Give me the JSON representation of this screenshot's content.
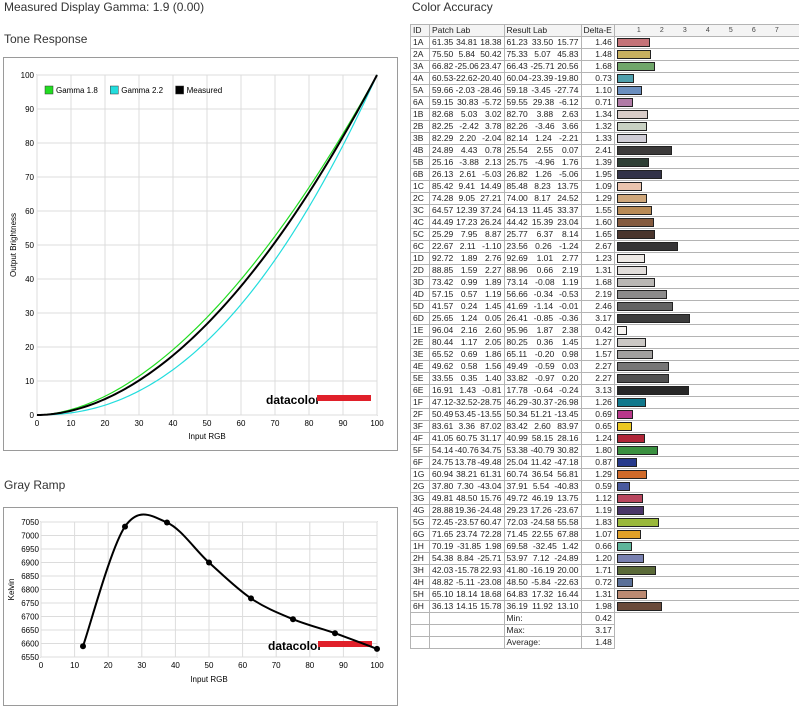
{
  "header": {
    "measured_gamma": "Measured Display Gamma: 1.9 (0.00)",
    "color_accuracy_title": "Color Accuracy"
  },
  "chart_data": [
    {
      "type": "line",
      "title": "Tone Response",
      "xlabel": "Input RGB",
      "ylabel": "Output Brightness",
      "xlim": [
        0,
        100
      ],
      "ylim": [
        0,
        100
      ],
      "xticks": [
        "0",
        "10",
        "20",
        "30",
        "40",
        "50",
        "60",
        "70",
        "80",
        "90",
        "100"
      ],
      "yticks": [
        "0",
        "10",
        "20",
        "30",
        "40",
        "50",
        "60",
        "70",
        "80",
        "90",
        "100"
      ],
      "grid": true,
      "legend": "top-left",
      "logo": "datacolor",
      "series": [
        {
          "name": "Gamma 1.8",
          "color": "#22dd22",
          "gamma": 1.8
        },
        {
          "name": "Gamma 2.2",
          "color": "#22dddd",
          "gamma": 2.2
        },
        {
          "name": "Measured",
          "color": "#000000",
          "gamma": 1.9
        }
      ]
    },
    {
      "type": "line",
      "title": "Gray Ramp",
      "xlabel": "Input RGB",
      "ylabel": "Kelvin",
      "xlim": [
        0,
        100
      ],
      "ylim": [
        6550,
        7050
      ],
      "xticks": [
        "0",
        "10",
        "20",
        "30",
        "40",
        "50",
        "60",
        "70",
        "80",
        "90",
        "100"
      ],
      "yticks": [
        "6550",
        "6600",
        "6650",
        "6700",
        "6750",
        "6800",
        "6850",
        "6900",
        "6950",
        "7000",
        "7050"
      ],
      "grid": true,
      "logo": "datacolor",
      "x": [
        12.5,
        25,
        37.5,
        50,
        62.5,
        75,
        87.5,
        100
      ],
      "y": [
        6590,
        7033,
        7048,
        6900,
        6767,
        6690,
        6638,
        6580
      ]
    }
  ],
  "color_accuracy": {
    "headers": [
      "ID",
      "Patch Lab",
      "Result Lab",
      "Delta-E"
    ],
    "scale": [
      "1",
      "2",
      "3",
      "4",
      "5",
      "6",
      "7"
    ],
    "rows": [
      {
        "id": "1A",
        "patch": [
          "61.35",
          "34.81",
          "18.38"
        ],
        "result": [
          "61.23",
          "33.50",
          "15.77"
        ],
        "de": 1.46,
        "color": "#c47378"
      },
      {
        "id": "2A",
        "patch": [
          "75.50",
          "5.84",
          "50.42"
        ],
        "result": [
          "75.33",
          "5.07",
          "45.83"
        ],
        "de": 1.48,
        "color": "#c8b060"
      },
      {
        "id": "3A",
        "patch": [
          "66.82",
          "-25.06",
          "23.47"
        ],
        "result": [
          "66.43",
          "-25.71",
          "20.56"
        ],
        "de": 1.68,
        "color": "#70a66a"
      },
      {
        "id": "4A",
        "patch": [
          "60.53",
          "-22.62",
          "-20.40"
        ],
        "result": [
          "60.04",
          "-23.39",
          "-19.80"
        ],
        "de": 0.73,
        "color": "#4fa0ad"
      },
      {
        "id": "5A",
        "patch": [
          "59.66",
          "-2.03",
          "-28.46"
        ],
        "result": [
          "59.18",
          "-3.45",
          "-27.74"
        ],
        "de": 1.1,
        "color": "#6b8fc0"
      },
      {
        "id": "6A",
        "patch": [
          "59.15",
          "30.83",
          "-5.72"
        ],
        "result": [
          "59.55",
          "29.38",
          "-6.12"
        ],
        "de": 0.71,
        "color": "#b07ba6"
      },
      {
        "id": "1B",
        "patch": [
          "82.68",
          "5.03",
          "3.02"
        ],
        "result": [
          "82.70",
          "3.88",
          "2.63"
        ],
        "de": 1.34,
        "color": "#d8ccc8"
      },
      {
        "id": "2B",
        "patch": [
          "82.25",
          "-2.42",
          "3.78"
        ],
        "result": [
          "82.26",
          "-3.46",
          "3.66"
        ],
        "de": 1.32,
        "color": "#c8d0c2"
      },
      {
        "id": "3B",
        "patch": [
          "82.29",
          "2.20",
          "-2.04"
        ],
        "result": [
          "82.14",
          "1.24",
          "-2.21"
        ],
        "de": 1.33,
        "color": "#d0cdd6"
      },
      {
        "id": "4B",
        "patch": [
          "24.89",
          "4.43",
          "0.78"
        ],
        "result": [
          "25.54",
          "2.55",
          "0.07"
        ],
        "de": 2.41,
        "color": "#3c3a3a"
      },
      {
        "id": "5B",
        "patch": [
          "25.16",
          "-3.88",
          "2.13"
        ],
        "result": [
          "25.75",
          "-4.96",
          "1.76"
        ],
        "de": 1.39,
        "color": "#2e3f35"
      },
      {
        "id": "6B",
        "patch": [
          "26.13",
          "2.61",
          "-5.03"
        ],
        "result": [
          "26.82",
          "1.26",
          "-5.06"
        ],
        "de": 1.95,
        "color": "#333348"
      },
      {
        "id": "1C",
        "patch": [
          "85.42",
          "9.41",
          "14.49"
        ],
        "result": [
          "85.48",
          "8.23",
          "13.75"
        ],
        "de": 1.09,
        "color": "#eac4ae"
      },
      {
        "id": "2C",
        "patch": [
          "74.28",
          "9.05",
          "27.21"
        ],
        "result": [
          "74.00",
          "8.17",
          "24.52"
        ],
        "de": 1.29,
        "color": "#cfa77a"
      },
      {
        "id": "3C",
        "patch": [
          "64.57",
          "12.39",
          "37.24"
        ],
        "result": [
          "64.13",
          "11.45",
          "33.37"
        ],
        "de": 1.55,
        "color": "#b88a55"
      },
      {
        "id": "4C",
        "patch": [
          "44.49",
          "17.23",
          "26.24"
        ],
        "result": [
          "44.42",
          "15.39",
          "23.04"
        ],
        "de": 1.6,
        "color": "#845a3e"
      },
      {
        "id": "5C",
        "patch": [
          "25.29",
          "7.95",
          "8.87"
        ],
        "result": [
          "25.77",
          "6.37",
          "8.14"
        ],
        "de": 1.65,
        "color": "#4a352c"
      },
      {
        "id": "6C",
        "patch": [
          "22.67",
          "2.11",
          "-1.10"
        ],
        "result": [
          "23.56",
          "0.26",
          "-1.24"
        ],
        "de": 2.67,
        "color": "#353436"
      },
      {
        "id": "1D",
        "patch": [
          "92.72",
          "1.89",
          "2.76"
        ],
        "result": [
          "92.69",
          "1.01",
          "2.77"
        ],
        "de": 1.23,
        "color": "#eeeae6"
      },
      {
        "id": "2D",
        "patch": [
          "88.85",
          "1.59",
          "2.27"
        ],
        "result": [
          "88.96",
          "0.66",
          "2.19"
        ],
        "de": 1.31,
        "color": "#e2dedb"
      },
      {
        "id": "3D",
        "patch": [
          "73.42",
          "0.99",
          "1.89"
        ],
        "result": [
          "73.14",
          "-0.08",
          "1.19"
        ],
        "de": 1.68,
        "color": "#b9b7b4"
      },
      {
        "id": "4D",
        "patch": [
          "57.15",
          "0.57",
          "1.19"
        ],
        "result": [
          "56.66",
          "-0.34",
          "-0.53"
        ],
        "de": 2.19,
        "color": "#8c8b8b"
      },
      {
        "id": "5D",
        "patch": [
          "41.57",
          "0.24",
          "1.45"
        ],
        "result": [
          "41.69",
          "-1.14",
          "-0.01"
        ],
        "de": 2.46,
        "color": "#636363"
      },
      {
        "id": "6D",
        "patch": [
          "25.65",
          "1.24",
          "0.05"
        ],
        "result": [
          "26.41",
          "-0.85",
          "-0.36"
        ],
        "de": 3.17,
        "color": "#3c3c3c"
      },
      {
        "id": "1E",
        "patch": [
          "96.04",
          "2.16",
          "2.60"
        ],
        "result": [
          "95.96",
          "1.87",
          "2.38"
        ],
        "de": 0.42,
        "color": "#f7f4f1"
      },
      {
        "id": "2E",
        "patch": [
          "80.44",
          "1.17",
          "2.05"
        ],
        "result": [
          "80.25",
          "0.36",
          "1.45"
        ],
        "de": 1.27,
        "color": "#cbc8c5"
      },
      {
        "id": "3E",
        "patch": [
          "65.52",
          "0.69",
          "1.86"
        ],
        "result": [
          "65.11",
          "-0.20",
          "0.98"
        ],
        "de": 1.57,
        "color": "#a2a09f"
      },
      {
        "id": "4E",
        "patch": [
          "49.62",
          "0.58",
          "1.56"
        ],
        "result": [
          "49.49",
          "-0.59",
          "0.03"
        ],
        "de": 2.27,
        "color": "#777676"
      },
      {
        "id": "5E",
        "patch": [
          "33.55",
          "0.35",
          "1.40"
        ],
        "result": [
          "33.82",
          "-0.97",
          "0.20"
        ],
        "de": 2.27,
        "color": "#505050"
      },
      {
        "id": "6E",
        "patch": [
          "16.91",
          "1.43",
          "-0.81"
        ],
        "result": [
          "17.78",
          "-0.64",
          "-0.24"
        ],
        "de": 3.13,
        "color": "#272727"
      },
      {
        "id": "1F",
        "patch": [
          "47.12",
          "-32.52",
          "-28.75"
        ],
        "result": [
          "46.29",
          "-30.37",
          "-26.98"
        ],
        "de": 1.26,
        "color": "#10788c"
      },
      {
        "id": "2F",
        "patch": [
          "50.49",
          "53.45",
          "-13.55"
        ],
        "result": [
          "50.34",
          "51.21",
          "-13.45"
        ],
        "de": 0.69,
        "color": "#b8388a"
      },
      {
        "id": "3F",
        "patch": [
          "83.61",
          "3.36",
          "87.02"
        ],
        "result": [
          "83.42",
          "2.60",
          "83.97"
        ],
        "de": 0.65,
        "color": "#ecc820"
      },
      {
        "id": "4F",
        "patch": [
          "41.05",
          "60.75",
          "31.17"
        ],
        "result": [
          "40.99",
          "58.15",
          "28.16"
        ],
        "de": 1.24,
        "color": "#b02638"
      },
      {
        "id": "5F",
        "patch": [
          "54.14",
          "-40.76",
          "34.75"
        ],
        "result": [
          "53.38",
          "-40.79",
          "30.82"
        ],
        "de": 1.8,
        "color": "#3a9040"
      },
      {
        "id": "6F",
        "patch": [
          "24.75",
          "13.78",
          "-49.48"
        ],
        "result": [
          "25.04",
          "11.42",
          "-47.18"
        ],
        "de": 0.87,
        "color": "#263a8c"
      },
      {
        "id": "1G",
        "patch": [
          "60.94",
          "38.21",
          "61.31"
        ],
        "result": [
          "60.74",
          "36.54",
          "56.81"
        ],
        "de": 1.29,
        "color": "#d06a2a"
      },
      {
        "id": "2G",
        "patch": [
          "37.80",
          "7.30",
          "-43.04"
        ],
        "result": [
          "37.91",
          "5.54",
          "-40.83"
        ],
        "de": 0.59,
        "color": "#4a5a9e"
      },
      {
        "id": "3G",
        "patch": [
          "49.81",
          "48.50",
          "15.76"
        ],
        "result": [
          "49.72",
          "46.19",
          "13.75"
        ],
        "de": 1.12,
        "color": "#b8465e"
      },
      {
        "id": "4G",
        "patch": [
          "28.88",
          "19.36",
          "-24.48"
        ],
        "result": [
          "29.23",
          "17.26",
          "-23.67"
        ],
        "de": 1.19,
        "color": "#4a3468"
      },
      {
        "id": "5G",
        "patch": [
          "72.45",
          "-23.57",
          "60.47"
        ],
        "result": [
          "72.03",
          "-24.58",
          "55.58"
        ],
        "de": 1.83,
        "color": "#9ab83a"
      },
      {
        "id": "6G",
        "patch": [
          "71.65",
          "23.74",
          "72.28"
        ],
        "result": [
          "71.45",
          "22.55",
          "67.88"
        ],
        "de": 1.07,
        "color": "#e0a028"
      },
      {
        "id": "1H",
        "patch": [
          "70.19",
          "-31.85",
          "1.98"
        ],
        "result": [
          "69.58",
          "-32.45",
          "1.42"
        ],
        "de": 0.66,
        "color": "#5eb59a"
      },
      {
        "id": "2H",
        "patch": [
          "54.38",
          "8.84",
          "-25.71"
        ],
        "result": [
          "53.97",
          "7.12",
          "-24.89"
        ],
        "de": 1.2,
        "color": "#7880b0"
      },
      {
        "id": "3H",
        "patch": [
          "42.03",
          "-15.78",
          "22.93"
        ],
        "result": [
          "41.80",
          "-16.19",
          "20.00"
        ],
        "de": 1.71,
        "color": "#5a6a38"
      },
      {
        "id": "4H",
        "patch": [
          "48.82",
          "-5.11",
          "-23.08"
        ],
        "result": [
          "48.50",
          "-5.84",
          "-22.63"
        ],
        "de": 0.72,
        "color": "#5a7098"
      },
      {
        "id": "5H",
        "patch": [
          "65.10",
          "18.14",
          "18.68"
        ],
        "result": [
          "64.83",
          "17.32",
          "16.44"
        ],
        "de": 1.31,
        "color": "#bc8a72"
      },
      {
        "id": "6H",
        "patch": [
          "36.13",
          "14.15",
          "15.78"
        ],
        "result": [
          "36.19",
          "11.92",
          "13.10"
        ],
        "de": 1.98,
        "color": "#6a4a3a"
      }
    ],
    "summary": [
      {
        "label": "Min:",
        "value": "0.42"
      },
      {
        "label": "Max:",
        "value": "3.17"
      },
      {
        "label": "Average:",
        "value": "1.48"
      }
    ]
  }
}
